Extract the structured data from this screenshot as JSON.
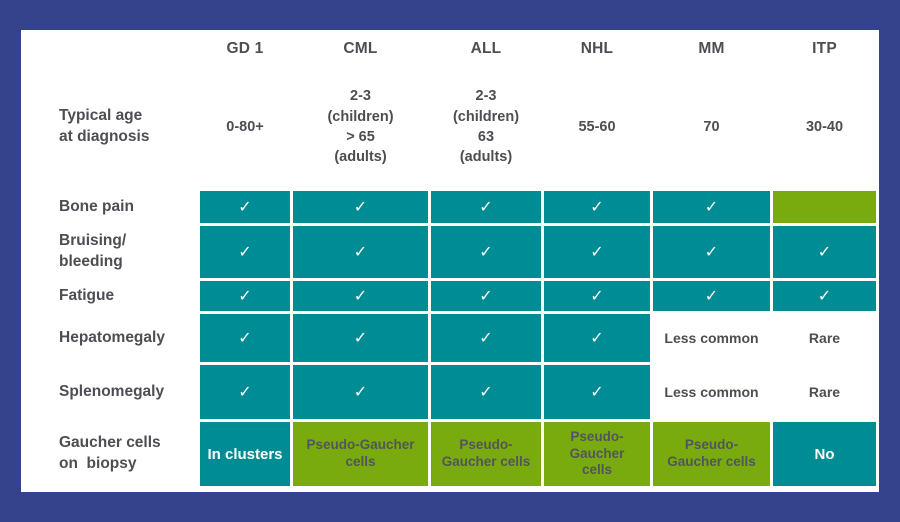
{
  "colors": {
    "background_navy": "#35428C",
    "card_white": "#FFFFFF",
    "cell_teal": "#008C95",
    "cell_green": "#7AAB0E",
    "text_dark_gray": "#4D4E53",
    "text_on_green": "#50565B",
    "text_on_teal": "#FFFFFF"
  },
  "glyphs": {
    "check": "✓"
  },
  "columns": [
    "GD 1",
    "CML",
    "ALL",
    "NHL",
    "MM",
    "ITP"
  ],
  "age": {
    "label": "Typical age\nat diagnosis",
    "values": [
      "0-80+",
      "2-3\n(children)\n> 65\n(adults)",
      "2-3\n(children)\n63\n(adults)",
      "55-60",
      "70",
      "30-40"
    ]
  },
  "rows": {
    "bone_pain": {
      "label": "Bone pain"
    },
    "bruising": {
      "label": "Bruising/\nbleeding"
    },
    "fatigue": {
      "label": "Fatigue"
    },
    "hepatomegaly": {
      "label": "Hepatomegaly",
      "mm": "Less common",
      "itp": "Rare"
    },
    "splenomegaly": {
      "label": "Splenomegaly",
      "mm": "Less common",
      "itp": "Rare"
    },
    "gaucher": {
      "label": "Gaucher cells\non  biopsy",
      "gd1": "In clusters",
      "cml": "Pseudo-Gaucher\ncells",
      "all": "Pseudo-\nGaucher cells",
      "nhl": "Pseudo-\nGaucher\ncells",
      "mm": "Pseudo-\nGaucher cells",
      "itp": "No"
    }
  },
  "chart_data": {
    "type": "table",
    "title": "",
    "columns": [
      "",
      "GD 1",
      "CML",
      "ALL",
      "NHL",
      "MM",
      "ITP"
    ],
    "rows": [
      [
        "Typical age at diagnosis",
        "0-80+",
        "2-3 (children) > 65 (adults)",
        "2-3 (children) 63 (adults)",
        "55-60",
        "70",
        "30-40"
      ],
      [
        "Bone pain",
        "✓",
        "✓",
        "✓",
        "✓",
        "✓",
        ""
      ],
      [
        "Bruising/bleeding",
        "✓",
        "✓",
        "✓",
        "✓",
        "✓",
        "✓"
      ],
      [
        "Fatigue",
        "✓",
        "✓",
        "✓",
        "✓",
        "✓",
        "✓"
      ],
      [
        "Hepatomegaly",
        "✓",
        "✓",
        "✓",
        "✓",
        "Less common",
        "Rare"
      ],
      [
        "Splenomegaly",
        "✓",
        "✓",
        "✓",
        "✓",
        "Less common",
        "Rare"
      ],
      [
        "Gaucher cells on biopsy",
        "In clusters",
        "Pseudo-Gaucher cells",
        "Pseudo-Gaucher cells",
        "Pseudo-Gaucher cells",
        "Pseudo-Gaucher cells",
        "No"
      ]
    ],
    "legend_colors": {
      "teal_cell": "symptom present / GD answer",
      "green_cell": "pseudo-Gaucher / absent bone pain",
      "white_cell": "less common or rare"
    }
  }
}
